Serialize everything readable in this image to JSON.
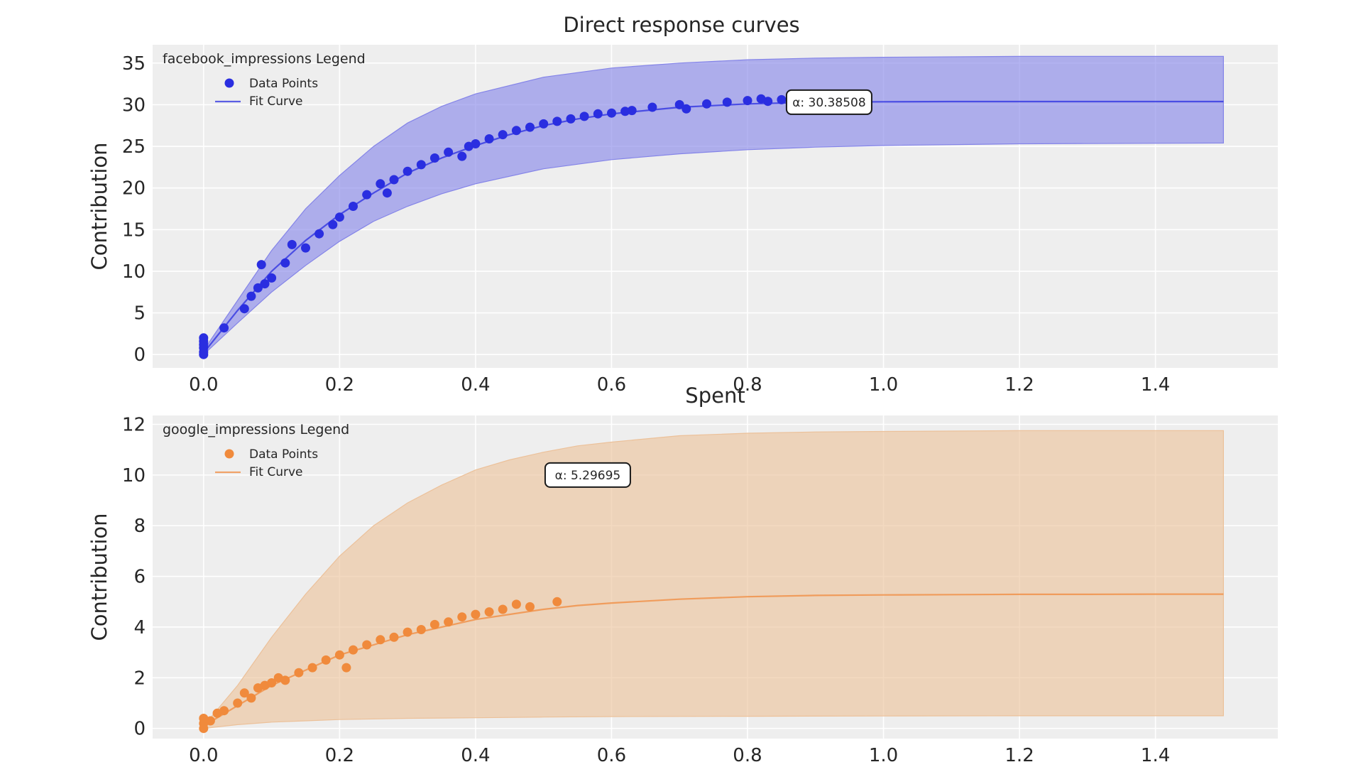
{
  "figure": {
    "title": "Direct response curves"
  },
  "chart_data": [
    {
      "type": "scatter",
      "channel": "facebook_impressions",
      "legend_title": "facebook_impressions Legend",
      "legend_points": "Data Points",
      "legend_curve": "Fit Curve",
      "xlabel": "Spent",
      "ylabel": "Contribution",
      "xlim": [
        -0.075,
        1.58
      ],
      "ylim": [
        -1.6,
        37.2
      ],
      "xticks": [
        0.0,
        0.2,
        0.4,
        0.6,
        0.8,
        1.0,
        1.2,
        1.4
      ],
      "xtick_labels": [
        "0.0",
        "0.2",
        "0.4",
        "0.6",
        "0.8",
        "1.0",
        "1.2",
        "1.4"
      ],
      "yticks": [
        0,
        5,
        10,
        15,
        20,
        25,
        30,
        35
      ],
      "ytick_labels": [
        "0",
        "5",
        "10",
        "15",
        "20",
        "25",
        "30",
        "35"
      ],
      "grid": true,
      "legend_position": "top-left",
      "color": "#2a2ee0",
      "band_color": "#8484e8",
      "alpha_annotation": "α: 30.38508",
      "annotation_at": [
        0.92,
        30.3
      ],
      "fit_curve": {
        "x": [
          0,
          0.05,
          0.1,
          0.15,
          0.2,
          0.25,
          0.3,
          0.35,
          0.4,
          0.45,
          0.5,
          0.55,
          0.6,
          0.7,
          0.8,
          0.9,
          1.0,
          1.1,
          1.2,
          1.3,
          1.4,
          1.5
        ],
        "y": [
          0.2,
          5.3,
          10.0,
          13.7,
          16.8,
          19.4,
          21.8,
          23.6,
          25.1,
          26.4,
          27.5,
          28.3,
          28.9,
          29.7,
          30.1,
          30.3,
          30.35,
          30.38,
          30.38,
          30.38,
          30.38,
          30.38
        ]
      },
      "band_upper": {
        "x": [
          0,
          0.05,
          0.1,
          0.15,
          0.2,
          0.25,
          0.3,
          0.35,
          0.4,
          0.5,
          0.6,
          0.7,
          0.8,
          0.9,
          1.0,
          1.2,
          1.5
        ],
        "y": [
          0.5,
          6.5,
          12.5,
          17.5,
          21.5,
          25.0,
          27.8,
          29.8,
          31.3,
          33.3,
          34.4,
          35.0,
          35.4,
          35.6,
          35.7,
          35.8,
          35.8
        ]
      },
      "band_lower": {
        "x": [
          0,
          0.05,
          0.1,
          0.15,
          0.2,
          0.25,
          0.3,
          0.35,
          0.4,
          0.5,
          0.6,
          0.7,
          0.8,
          0.9,
          1.0,
          1.2,
          1.5
        ],
        "y": [
          0.0,
          3.8,
          7.5,
          10.7,
          13.6,
          16.0,
          17.8,
          19.3,
          20.5,
          22.3,
          23.4,
          24.1,
          24.6,
          24.9,
          25.1,
          25.3,
          25.4
        ]
      },
      "points": {
        "x": [
          0.0,
          0.0,
          0.0,
          0.0,
          0.0,
          0.0,
          0.03,
          0.06,
          0.07,
          0.08,
          0.085,
          0.09,
          0.1,
          0.12,
          0.13,
          0.15,
          0.17,
          0.19,
          0.2,
          0.22,
          0.24,
          0.26,
          0.27,
          0.28,
          0.3,
          0.32,
          0.34,
          0.36,
          0.38,
          0.39,
          0.4,
          0.42,
          0.44,
          0.46,
          0.48,
          0.5,
          0.52,
          0.54,
          0.56,
          0.58,
          0.6,
          0.62,
          0.63,
          0.66,
          0.7,
          0.71,
          0.74,
          0.77,
          0.8,
          0.82,
          0.83,
          0.85
        ],
        "y": [
          0.0,
          0.3,
          0.8,
          1.2,
          1.6,
          2.0,
          3.2,
          5.5,
          7.0,
          8.0,
          10.8,
          8.5,
          9.2,
          11.0,
          13.2,
          12.8,
          14.5,
          15.6,
          16.5,
          17.8,
          19.2,
          20.5,
          19.4,
          21.0,
          22.0,
          22.8,
          23.6,
          24.3,
          23.8,
          25.0,
          25.3,
          25.9,
          26.4,
          26.9,
          27.3,
          27.7,
          28.0,
          28.3,
          28.6,
          28.9,
          29.0,
          29.2,
          29.3,
          29.7,
          30.0,
          29.5,
          30.1,
          30.3,
          30.5,
          30.7,
          30.4,
          30.6
        ]
      }
    },
    {
      "type": "scatter",
      "channel": "google_impressions",
      "legend_title": "google_impressions Legend",
      "legend_points": "Data Points",
      "legend_curve": "Fit Curve",
      "xlabel": "",
      "ylabel": "Contribution",
      "xlim": [
        -0.075,
        1.58
      ],
      "ylim": [
        -0.4,
        12.35
      ],
      "xticks": [
        0.0,
        0.2,
        0.4,
        0.6,
        0.8,
        1.0,
        1.2,
        1.4
      ],
      "xtick_labels": [
        "0.0",
        "0.2",
        "0.4",
        "0.6",
        "0.8",
        "1.0",
        "1.2",
        "1.4"
      ],
      "yticks": [
        0,
        2,
        4,
        6,
        8,
        10,
        12
      ],
      "ytick_labels": [
        "0",
        "2",
        "4",
        "6",
        "8",
        "10",
        "12"
      ],
      "grid": true,
      "legend_position": "top-left",
      "color": "#f08a3c",
      "band_color": "#ecc19a",
      "alpha_annotation": "α: 5.29695",
      "annotation_at": [
        0.565,
        10.0
      ],
      "fit_curve": {
        "x": [
          0,
          0.05,
          0.1,
          0.15,
          0.2,
          0.25,
          0.3,
          0.35,
          0.4,
          0.45,
          0.5,
          0.55,
          0.6,
          0.7,
          0.8,
          0.9,
          1.0,
          1.1,
          1.2,
          1.3,
          1.4,
          1.5
        ],
        "y": [
          0.1,
          0.9,
          1.7,
          2.3,
          2.9,
          3.3,
          3.7,
          4.0,
          4.3,
          4.5,
          4.7,
          4.85,
          4.95,
          5.1,
          5.2,
          5.25,
          5.27,
          5.28,
          5.29,
          5.29,
          5.3,
          5.3
        ]
      },
      "band_upper": {
        "x": [
          0,
          0.05,
          0.1,
          0.15,
          0.2,
          0.25,
          0.3,
          0.35,
          0.4,
          0.45,
          0.5,
          0.55,
          0.6,
          0.7,
          0.8,
          0.9,
          1.0,
          1.2,
          1.5
        ],
        "y": [
          0.1,
          1.7,
          3.6,
          5.3,
          6.8,
          8.0,
          8.9,
          9.6,
          10.2,
          10.6,
          10.9,
          11.15,
          11.3,
          11.55,
          11.65,
          11.7,
          11.72,
          11.75,
          11.75
        ]
      },
      "band_lower": {
        "x": [
          0,
          0.05,
          0.1,
          0.15,
          0.2,
          0.3,
          0.4,
          0.5,
          0.6,
          0.8,
          1.0,
          1.2,
          1.5
        ],
        "y": [
          0.0,
          0.15,
          0.25,
          0.3,
          0.35,
          0.4,
          0.42,
          0.45,
          0.47,
          0.48,
          0.49,
          0.5,
          0.5
        ]
      },
      "points": {
        "x": [
          0.0,
          0.0,
          0.0,
          0.01,
          0.02,
          0.03,
          0.05,
          0.06,
          0.07,
          0.08,
          0.09,
          0.1,
          0.11,
          0.12,
          0.14,
          0.16,
          0.18,
          0.2,
          0.21,
          0.22,
          0.24,
          0.26,
          0.28,
          0.3,
          0.32,
          0.34,
          0.36,
          0.38,
          0.4,
          0.42,
          0.44,
          0.46,
          0.48,
          0.52
        ],
        "y": [
          0.0,
          0.2,
          0.4,
          0.3,
          0.6,
          0.7,
          1.0,
          1.4,
          1.2,
          1.6,
          1.7,
          1.8,
          2.0,
          1.9,
          2.2,
          2.4,
          2.7,
          2.9,
          2.4,
          3.1,
          3.3,
          3.5,
          3.6,
          3.8,
          3.9,
          4.1,
          4.2,
          4.4,
          4.5,
          4.6,
          4.7,
          4.9,
          4.8,
          5.0
        ]
      }
    }
  ]
}
